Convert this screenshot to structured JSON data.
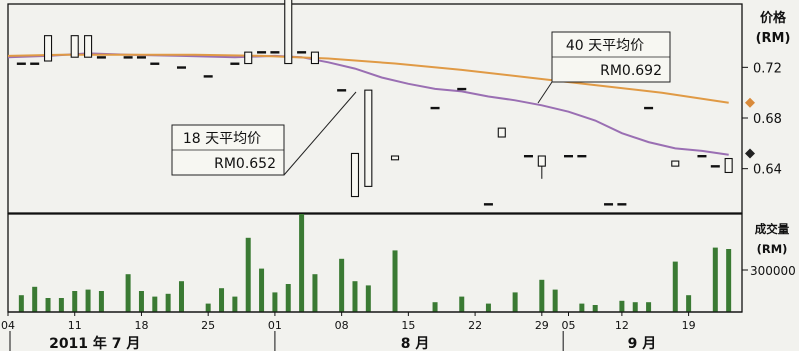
{
  "chart_data": [
    {
      "type": "candlestick",
      "ylabel_lines": [
        "价格",
        "(RM)"
      ],
      "yticks": [
        0.72,
        0.68,
        0.64
      ],
      "ylim": [
        0.605,
        0.77
      ],
      "xlim": [
        1,
        56
      ],
      "candles": [
        {
          "x": 2,
          "o": 0.723,
          "c": 0.723
        },
        {
          "x": 3,
          "o": 0.723,
          "c": 0.723
        },
        {
          "x": 4,
          "o": 0.725,
          "c": 0.745
        },
        {
          "x": 6,
          "o": 0.728,
          "c": 0.745
        },
        {
          "x": 7,
          "o": 0.728,
          "c": 0.745
        },
        {
          "x": 8,
          "o": 0.728,
          "c": 0.728
        },
        {
          "x": 10,
          "o": 0.728,
          "c": 0.728
        },
        {
          "x": 11,
          "o": 0.728,
          "c": 0.728
        },
        {
          "x": 12,
          "o": 0.723,
          "c": 0.723
        },
        {
          "x": 14,
          "o": 0.72,
          "c": 0.72
        },
        {
          "x": 16,
          "o": 0.713,
          "c": 0.713
        },
        {
          "x": 18,
          "o": 0.723,
          "c": 0.723
        },
        {
          "x": 19,
          "o": 0.723,
          "c": 0.732
        },
        {
          "x": 20,
          "o": 0.732,
          "c": 0.732
        },
        {
          "x": 21,
          "o": 0.732,
          "c": 0.732
        },
        {
          "x": 22,
          "o": 0.723,
          "c": 0.778
        },
        {
          "x": 23,
          "o": 0.732,
          "c": 0.732
        },
        {
          "x": 24,
          "o": 0.723,
          "c": 0.732
        },
        {
          "x": 26,
          "o": 0.702,
          "c": 0.702
        },
        {
          "x": 27,
          "o": 0.618,
          "c": 0.652
        },
        {
          "x": 28,
          "o": 0.626,
          "c": 0.702
        },
        {
          "x": 30,
          "o": 0.647,
          "c": 0.65
        },
        {
          "x": 33,
          "o": 0.688,
          "c": 0.688
        },
        {
          "x": 35,
          "o": 0.703,
          "c": 0.703
        },
        {
          "x": 37,
          "o": 0.612,
          "c": 0.612
        },
        {
          "x": 38,
          "o": 0.665,
          "c": 0.672
        },
        {
          "x": 40,
          "o": 0.65,
          "c": 0.65
        },
        {
          "x": 41,
          "o": 0.642,
          "c": 0.65,
          "h": 0.65,
          "l": 0.632
        },
        {
          "x": 43,
          "o": 0.65,
          "c": 0.65
        },
        {
          "x": 44,
          "o": 0.65,
          "c": 0.65
        },
        {
          "x": 46,
          "o": 0.612,
          "c": 0.612
        },
        {
          "x": 47,
          "o": 0.612,
          "c": 0.612
        },
        {
          "x": 49,
          "o": 0.688,
          "c": 0.688
        },
        {
          "x": 51,
          "o": 0.642,
          "c": 0.646
        },
        {
          "x": 53,
          "o": 0.65,
          "c": 0.65
        },
        {
          "x": 54,
          "o": 0.642,
          "c": 0.642
        },
        {
          "x": 55,
          "o": 0.637,
          "c": 0.648
        }
      ],
      "series": [
        {
          "name": "18 天平均价",
          "color": "#9a6fb3",
          "x": [
            1,
            4,
            7,
            10,
            14,
            18,
            21,
            23,
            25,
            27,
            29,
            31,
            33,
            35,
            37,
            39,
            41,
            43,
            45,
            47,
            49,
            51,
            53,
            55
          ],
          "y": [
            0.728,
            0.729,
            0.731,
            0.73,
            0.729,
            0.728,
            0.729,
            0.728,
            0.724,
            0.719,
            0.712,
            0.707,
            0.703,
            0.701,
            0.697,
            0.694,
            0.69,
            0.685,
            0.678,
            0.668,
            0.661,
            0.656,
            0.654,
            0.651
          ]
        },
        {
          "name": "40 天平均价",
          "color": "#e09a45",
          "x": [
            1,
            5,
            10,
            15,
            20,
            25,
            30,
            35,
            40,
            45,
            50,
            55
          ],
          "y": [
            0.729,
            0.73,
            0.73,
            0.73,
            0.729,
            0.727,
            0.723,
            0.718,
            0.712,
            0.706,
            0.7,
            0.692
          ]
        }
      ],
      "markers": [
        {
          "value": 0.692,
          "color": "#d98a3a"
        },
        {
          "value": 0.652,
          "color": "#222222"
        }
      ],
      "annotations": [
        {
          "lines": [
            "40 天平均价",
            "RM0.692"
          ]
        },
        {
          "lines": [
            "18 天平均价",
            "RM0.652"
          ]
        }
      ]
    },
    {
      "type": "bar",
      "ylabel_lines": [
        "成交量",
        "(RM)"
      ],
      "yticks": [
        300000
      ],
      "ylim": [
        0,
        700000
      ],
      "xlim": [
        1,
        56
      ],
      "bar_color": "#3a7a33",
      "x": [
        2,
        3,
        4,
        5,
        6,
        7,
        8,
        10,
        11,
        12,
        13,
        14,
        16,
        17,
        18,
        19,
        20,
        21,
        22,
        23,
        24,
        26,
        27,
        28,
        30,
        33,
        35,
        37,
        39,
        41,
        42,
        44,
        45,
        47,
        48,
        49,
        51,
        52,
        54,
        55
      ],
      "values": [
        120000,
        180000,
        100000,
        100000,
        150000,
        160000,
        150000,
        270000,
        150000,
        110000,
        130000,
        220000,
        60000,
        170000,
        110000,
        530000,
        310000,
        140000,
        200000,
        700000,
        270000,
        380000,
        220000,
        190000,
        440000,
        70000,
        110000,
        60000,
        140000,
        230000,
        160000,
        60000,
        50000,
        80000,
        70000,
        70000,
        360000,
        120000,
        460000,
        450000
      ]
    }
  ],
  "x_axis": {
    "tick_labels": [
      {
        "x": 1,
        "label": "04"
      },
      {
        "x": 6,
        "label": "11"
      },
      {
        "x": 11,
        "label": "18"
      },
      {
        "x": 16,
        "label": "25"
      },
      {
        "x": 21,
        "label": "01"
      },
      {
        "x": 26,
        "label": "08"
      },
      {
        "x": 31,
        "label": "15"
      },
      {
        "x": 36,
        "label": "22"
      },
      {
        "x": 41,
        "label": "29"
      },
      {
        "x": 43,
        "label": "05"
      },
      {
        "x": 47,
        "label": "12"
      },
      {
        "x": 52,
        "label": "19"
      }
    ],
    "month_labels": [
      "2011 年 7 月",
      "8 月",
      "9 月"
    ]
  }
}
